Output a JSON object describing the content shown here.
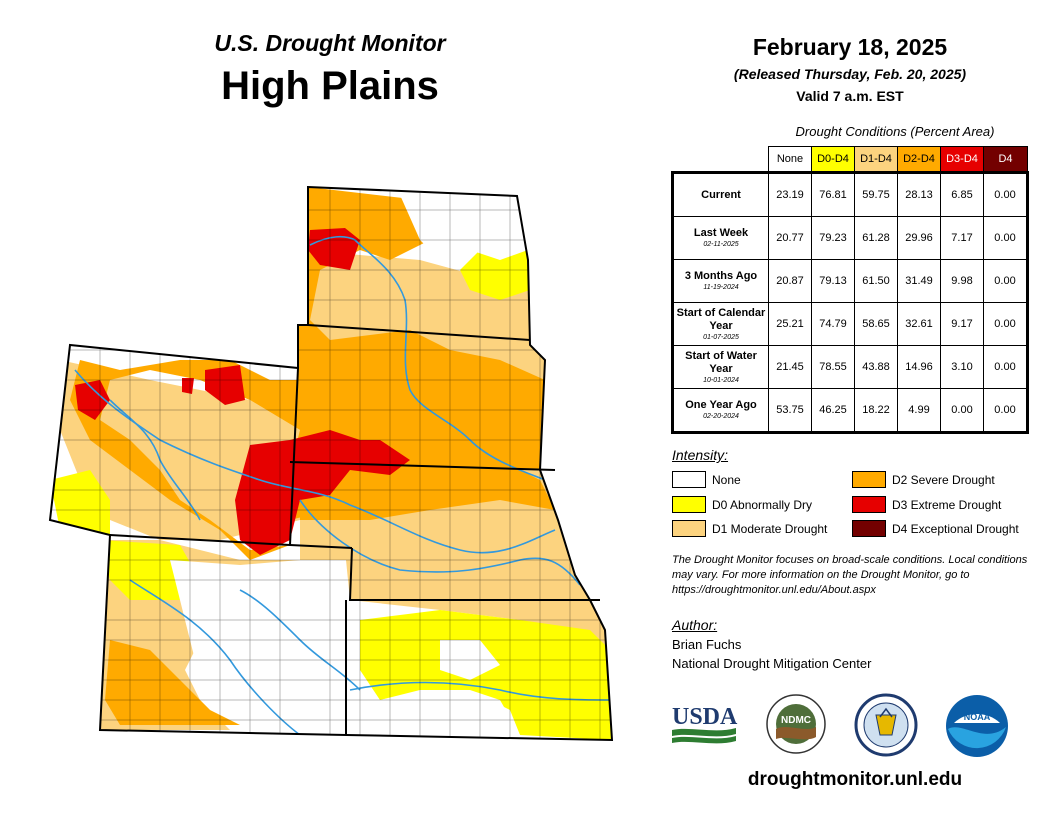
{
  "header": {
    "title_line1": "U.S. Drought Monitor",
    "title_line2": "High Plains",
    "date": "February 18, 2025",
    "released": "(Released Thursday, Feb. 20, 2025)",
    "valid": "Valid 7 a.m. EST"
  },
  "conditions": {
    "title": "Drought Conditions (Percent Area)",
    "columns": [
      "None",
      "D0-D4",
      "D1-D4",
      "D2-D4",
      "D3-D4",
      "D4"
    ],
    "rows": [
      {
        "label": "Current",
        "sub": "",
        "values": [
          "23.19",
          "76.81",
          "59.75",
          "28.13",
          "6.85",
          "0.00"
        ]
      },
      {
        "label": "Last Week",
        "sub": "02-11-2025",
        "values": [
          "20.77",
          "79.23",
          "61.28",
          "29.96",
          "7.17",
          "0.00"
        ]
      },
      {
        "label": "3 Months Ago",
        "sub": "11-19-2024",
        "values": [
          "20.87",
          "79.13",
          "61.50",
          "31.49",
          "9.98",
          "0.00"
        ]
      },
      {
        "label": "Start of Calendar Year",
        "sub": "01-07-2025",
        "values": [
          "25.21",
          "74.79",
          "58.65",
          "32.61",
          "9.17",
          "0.00"
        ]
      },
      {
        "label": "Start of Water Year",
        "sub": "10-01-2024",
        "values": [
          "21.45",
          "78.55",
          "43.88",
          "14.96",
          "3.10",
          "0.00"
        ]
      },
      {
        "label": "One Year Ago",
        "sub": "02-20-2024",
        "values": [
          "53.75",
          "46.25",
          "18.22",
          "4.99",
          "0.00",
          "0.00"
        ]
      }
    ]
  },
  "legend": {
    "title": "Intensity:",
    "items": [
      {
        "label": "None",
        "color": "#ffffff"
      },
      {
        "label": "D0 Abnormally Dry",
        "color": "#ffff00"
      },
      {
        "label": "D1 Moderate Drought",
        "color": "#fcd37f"
      },
      {
        "label": "D2 Severe Drought",
        "color": "#ffaa00"
      },
      {
        "label": "D3 Extreme Drought",
        "color": "#e60000"
      },
      {
        "label": "D4 Exceptional Drought",
        "color": "#730000"
      }
    ]
  },
  "note": "The Drought Monitor focuses on broad-scale conditions. Local conditions may vary. For more information on the Drought Monitor, go to https://droughtmonitor.unl.edu/About.aspx",
  "author": {
    "title": "Author:",
    "name": "Brian Fuchs",
    "org": "National Drought Mitigation Center"
  },
  "logos": {
    "usda": "USDA",
    "ndmc": "NDMC",
    "noaa": "NOAA"
  },
  "url": "droughtmonitor.unl.edu",
  "colors": {
    "none": "#ffffff",
    "d0": "#ffff00",
    "d1": "#fcd37f",
    "d2": "#ffaa00",
    "d3": "#e60000",
    "d4": "#730000",
    "water": "#3399dd"
  }
}
